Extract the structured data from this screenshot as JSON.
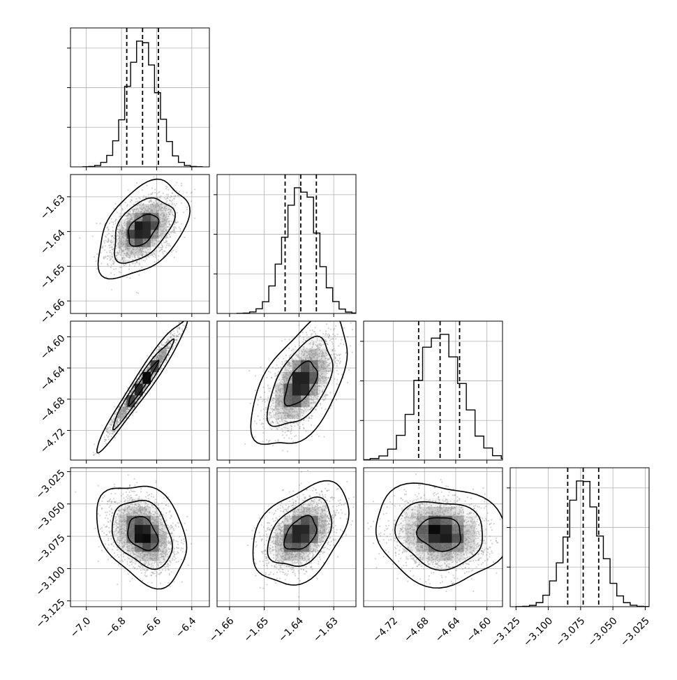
{
  "chart_data": {
    "type": "corner",
    "n_params": 4,
    "grid": true,
    "colors": {
      "ink": "#000000",
      "grid": "#b0b0b0",
      "scatter": "#7f7f7f"
    },
    "params": [
      {
        "center": -6.68,
        "sigma": 0.085,
        "q": [
          -6.77,
          -6.68,
          -6.59
        ],
        "lim": [
          -7.09,
          -6.3
        ],
        "ticks": [
          -7.0,
          -6.8,
          -6.6,
          -6.4
        ],
        "ticklabels": [
          "−7.0",
          "−6.8",
          "−6.6",
          "−6.4"
        ],
        "hist_peak": 1.0
      },
      {
        "center": -1.6395,
        "sigma": 0.0046,
        "q": [
          -1.644,
          -1.6395,
          -1.635
        ],
        "lim": [
          -1.6636,
          -1.6236
        ],
        "ticks": [
          -1.66,
          -1.65,
          -1.64,
          -1.63
        ],
        "ticklabels": [
          "−1.66",
          "−1.65",
          "−1.64",
          "−1.63"
        ],
        "hist_peak": 1.0
      },
      {
        "center": -4.66,
        "sigma": 0.028,
        "q": [
          -4.6875,
          -4.66,
          -4.635
        ],
        "lim": [
          -4.758,
          -4.58
        ],
        "ticks": [
          -4.72,
          -4.68,
          -4.64,
          -4.6
        ],
        "ticklabels": [
          "−4.72",
          "−4.68",
          "−4.64",
          "−4.60"
        ],
        "hist_peak": 1.0
      },
      {
        "center": -3.073,
        "sigma": 0.013,
        "q": [
          -3.085,
          -3.073,
          -3.061
        ],
        "lim": [
          -3.1295,
          -3.022
        ],
        "ticks": [
          -3.125,
          -3.1,
          -3.075,
          -3.05,
          -3.025
        ],
        "ticklabels": [
          "−3.125",
          "−3.100",
          "−3.075",
          "−3.050",
          "−3.025"
        ],
        "hist_peak": 1.0
      }
    ],
    "correlations": {
      "1-0": 0.45,
      "2-0": 0.97,
      "2-1": 0.55,
      "3-0": -0.3,
      "3-1": 0.4,
      "3-2": -0.1
    },
    "contour_levels": [
      0.393,
      0.865,
      0.989
    ],
    "hist_bins": 20,
    "scatter_points": 2200
  }
}
